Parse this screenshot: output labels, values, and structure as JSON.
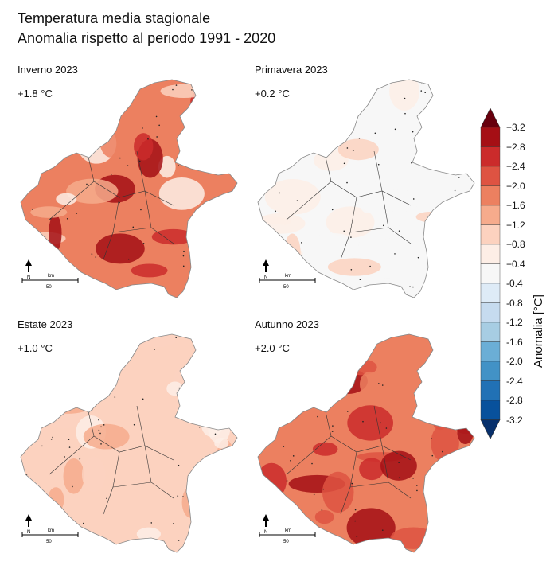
{
  "header": {
    "title_line1": "Temperatura media stagionale",
    "title_line2": "Anomalia rispetto al periodo 1991 - 2020"
  },
  "chart_data": {
    "type": "heatmap",
    "title": "Temperatura media stagionale",
    "subtitle": "Anomalia rispetto al periodo 1991 - 2020",
    "colorbar_label": "Anomalia [°C]",
    "panels": [
      {
        "season": "Inverno 2023",
        "anomaly_label": "+1.8 °C",
        "mean_anomaly": 1.8,
        "fill_range": [
          0.4,
          3.2
        ]
      },
      {
        "season": "Primavera 2023",
        "anomaly_label": "+0.2 °C",
        "mean_anomaly": 0.2,
        "fill_range": [
          -0.4,
          1.2
        ]
      },
      {
        "season": "Estate 2023",
        "anomaly_label": "+1.0 °C",
        "mean_anomaly": 1.0,
        "fill_range": [
          0.4,
          1.6
        ]
      },
      {
        "season": "Autunno 2023",
        "anomaly_label": "+2.0 °C",
        "mean_anomaly": 2.0,
        "fill_range": [
          1.6,
          3.2
        ]
      }
    ],
    "colorbar": {
      "ticks": [
        "+3.2",
        "+2.8",
        "+2.4",
        "+2.0",
        "+1.6",
        "+1.2",
        "+0.8",
        "+0.4",
        "-0.4",
        "-0.8",
        "-1.2",
        "-1.6",
        "-2.0",
        "-2.4",
        "-2.8",
        "-3.2"
      ],
      "colors": [
        "#67000d",
        "#a50f15",
        "#cb2b2b",
        "#de5342",
        "#ec8060",
        "#f6ab8c",
        "#fcd2bf",
        "#fdeee6",
        "#f7f7f7",
        "#deebf7",
        "#c6dbef",
        "#a7cde3",
        "#6baed6",
        "#4292c6",
        "#2171b5",
        "#08519c",
        "#08306b"
      ]
    },
    "map_scale": {
      "north": "N",
      "unit": "km",
      "distance": "50"
    }
  }
}
